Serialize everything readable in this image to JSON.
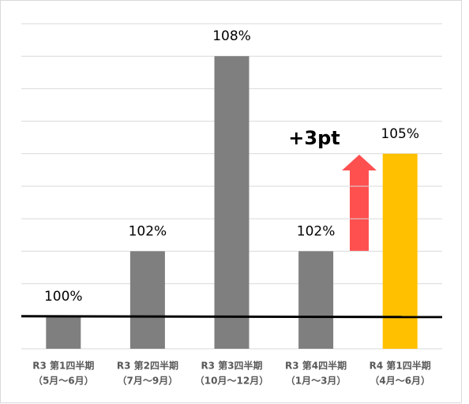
{
  "chart_data": {
    "type": "bar",
    "categories": [
      [
        "R3 第1四半期",
        "（5月～6月）"
      ],
      [
        "R3 第2四半期",
        "（7月～9月）"
      ],
      [
        "R3 第3四半期",
        "（10月～12月）"
      ],
      [
        "R3 第4四半期",
        "（1月～3月）"
      ],
      [
        "R4 第1四半期",
        "（4月～6月）"
      ]
    ],
    "values": [
      100,
      102,
      108,
      102,
      105
    ],
    "value_labels": [
      "100%",
      "102%",
      "108%",
      "102%",
      "105%"
    ],
    "colors": [
      "#7f7f7f",
      "#7f7f7f",
      "#7f7f7f",
      "#7f7f7f",
      "#ffc000"
    ],
    "ylim": [
      99,
      109
    ],
    "yticks": [
      99,
      100,
      101,
      102,
      103,
      104,
      105,
      106,
      107,
      108,
      109
    ],
    "grid": true,
    "reference_line": 100,
    "annotation": "+3pt"
  }
}
